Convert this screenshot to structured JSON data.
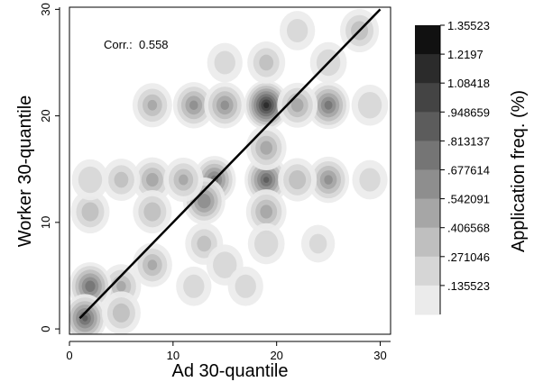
{
  "chart_data": {
    "type": "heatmap",
    "xlabel": "Ad 30-quantile",
    "ylabel": "Worker 30-quantile",
    "xlim": [
      0,
      31
    ],
    "ylim": [
      -0.5,
      30.2
    ],
    "x_ticks": [
      0,
      10,
      20,
      30
    ],
    "y_ticks": [
      0,
      10,
      20,
      30
    ],
    "annotation": "Corr.:  0.558",
    "diagonal_line": {
      "from": [
        1,
        1
      ],
      "to": [
        30,
        30
      ]
    },
    "colorbar": {
      "label": "Application freq. (%)",
      "ticks": [
        "1.35523",
        "1.2197",
        "1.08418",
        ".948659",
        ".813137",
        ".677614",
        ".542091",
        ".406568",
        ".271046",
        ".135523"
      ],
      "colors": [
        "#111111",
        "#2b2b2b",
        "#444444",
        "#5c5c5c",
        "#757575",
        "#8e8e8e",
        "#a6a6a6",
        "#bfbfbf",
        "#d6d6d6",
        "#ebebeb"
      ]
    },
    "hotspots": [
      {
        "x": 19,
        "y": 21,
        "value": 1.25
      },
      {
        "x": 14,
        "y": 14,
        "value": 0.85
      },
      {
        "x": 13,
        "y": 12,
        "value": 0.8
      },
      {
        "x": 12,
        "y": 21,
        "value": 0.7
      },
      {
        "x": 15,
        "y": 21,
        "value": 0.7
      },
      {
        "x": 25,
        "y": 21,
        "value": 0.85
      },
      {
        "x": 22,
        "y": 21,
        "value": 0.6
      },
      {
        "x": 19,
        "y": 14,
        "value": 0.95
      },
      {
        "x": 19,
        "y": 17,
        "value": 0.6
      },
      {
        "x": 19,
        "y": 11,
        "value": 0.6
      },
      {
        "x": 25,
        "y": 14,
        "value": 0.7
      },
      {
        "x": 8,
        "y": 21,
        "value": 0.55
      },
      {
        "x": 8,
        "y": 14,
        "value": 0.6
      },
      {
        "x": 8,
        "y": 11,
        "value": 0.5
      },
      {
        "x": 8,
        "y": 6,
        "value": 0.55
      },
      {
        "x": 5,
        "y": 14,
        "value": 0.45
      },
      {
        "x": 5,
        "y": 4,
        "value": 0.55
      },
      {
        "x": 2,
        "y": 4,
        "value": 0.9
      },
      {
        "x": 2,
        "y": 11,
        "value": 0.5
      },
      {
        "x": 2,
        "y": 14,
        "value": 0.4
      },
      {
        "x": 1.5,
        "y": 1,
        "value": 0.95
      },
      {
        "x": 5,
        "y": 1.5,
        "value": 0.5
      },
      {
        "x": 13,
        "y": 8,
        "value": 0.45
      },
      {
        "x": 15,
        "y": 6,
        "value": 0.4
      },
      {
        "x": 19,
        "y": 25,
        "value": 0.45
      },
      {
        "x": 25,
        "y": 25,
        "value": 0.4
      },
      {
        "x": 22,
        "y": 28,
        "value": 0.35
      },
      {
        "x": 28,
        "y": 28,
        "value": 0.5
      },
      {
        "x": 15,
        "y": 25,
        "value": 0.35
      },
      {
        "x": 29,
        "y": 21,
        "value": 0.4
      },
      {
        "x": 29,
        "y": 14,
        "value": 0.35
      },
      {
        "x": 22,
        "y": 14,
        "value": 0.5
      },
      {
        "x": 11,
        "y": 14,
        "value": 0.55
      },
      {
        "x": 12,
        "y": 4,
        "value": 0.35
      },
      {
        "x": 17,
        "y": 4,
        "value": 0.35
      },
      {
        "x": 19,
        "y": 8,
        "value": 0.4
      },
      {
        "x": 24,
        "y": 8,
        "value": 0.3
      }
    ]
  }
}
